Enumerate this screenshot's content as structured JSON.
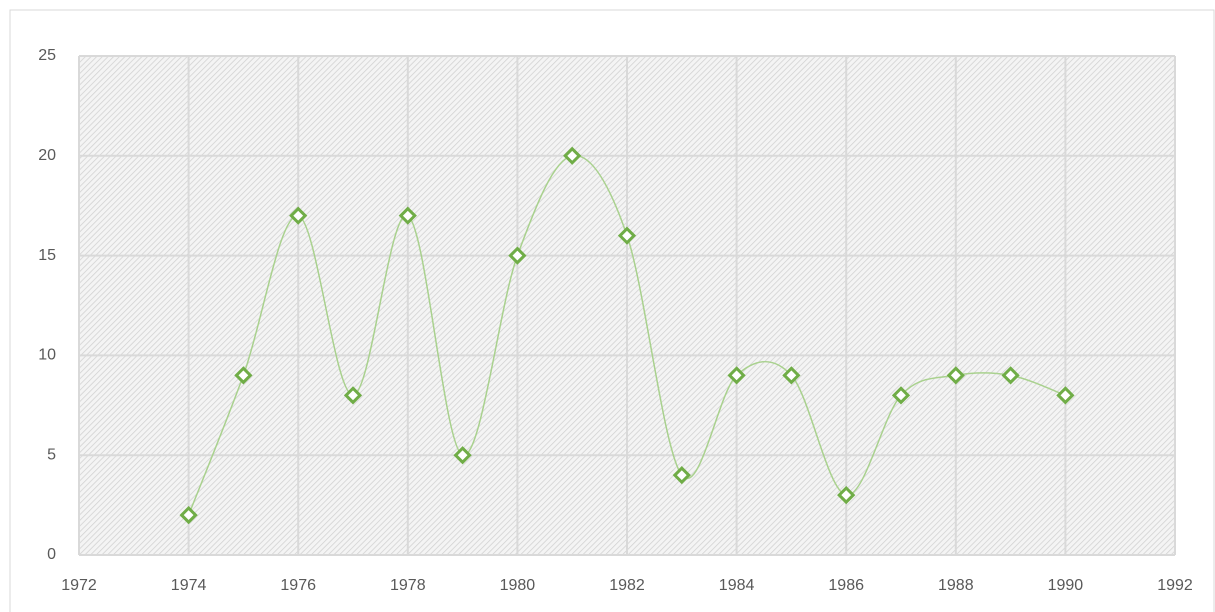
{
  "chart_data": {
    "type": "line",
    "x": [
      1974,
      1975,
      1976,
      1977,
      1978,
      1979,
      1980,
      1981,
      1982,
      1983,
      1984,
      1985,
      1986,
      1987,
      1988,
      1989,
      1990
    ],
    "values": [
      2,
      9,
      17,
      8,
      17,
      5,
      15,
      20,
      16,
      4,
      9,
      9,
      3,
      8,
      9,
      9,
      8
    ],
    "color": "#70ad47",
    "smooth": true,
    "marker": "diamond",
    "xlim": [
      1972,
      1992
    ],
    "xticks": [
      1972,
      1974,
      1976,
      1978,
      1980,
      1982,
      1984,
      1986,
      1988,
      1990,
      1992
    ],
    "ylim": [
      0,
      25
    ],
    "yticks": [
      0,
      5,
      10,
      15,
      20,
      25
    ],
    "grid": true
  }
}
